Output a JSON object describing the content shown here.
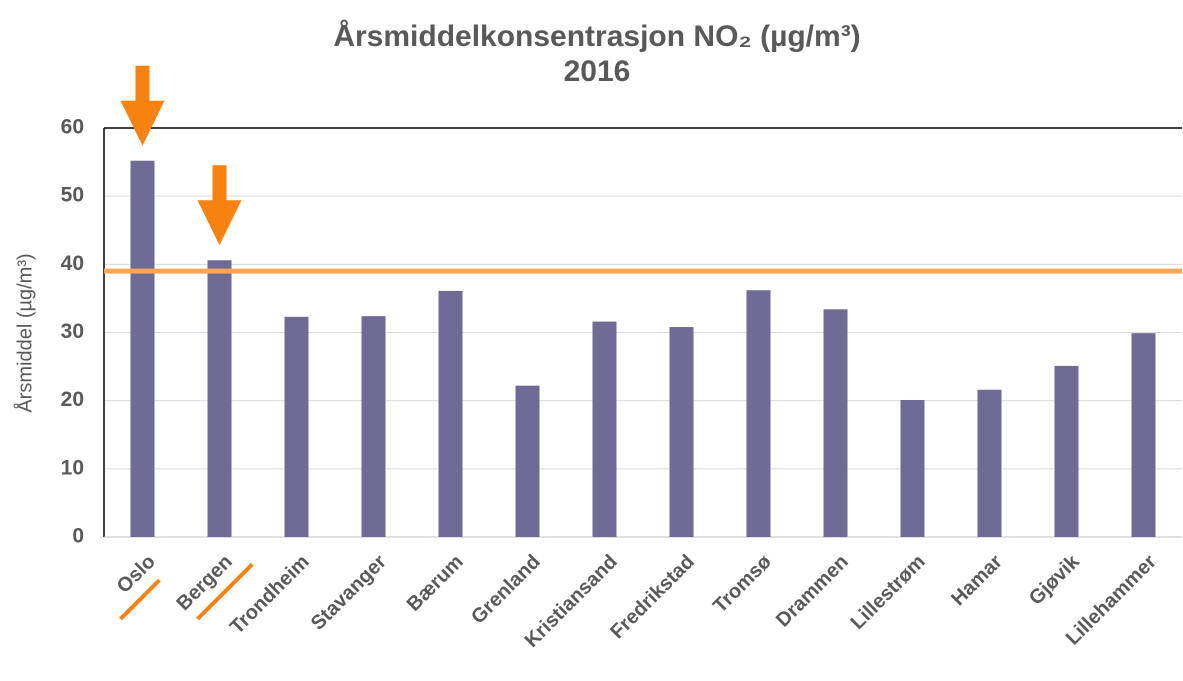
{
  "chart_data": {
    "type": "bar",
    "title": "Årsmiddelkonsentrasjon NO₂ (µg/m³)",
    "subtitle": "2016",
    "y_label": "Årsmiddel (µg/m³)",
    "categories": [
      "Oslo",
      "Bergen",
      "Trondheim",
      "Stavanger",
      "Bærum",
      "Grenland",
      "Kristiansand",
      "Fredrikstad",
      "Tromsø",
      "Drammen",
      "Lillestrøm",
      "Hamar",
      "Gjøvik",
      "Lillehammer"
    ],
    "values": [
      55.2,
      40.6,
      32.3,
      32.4,
      36.1,
      22.2,
      31.6,
      30.8,
      36.2,
      33.4,
      20.1,
      21.6,
      25.1,
      29.9
    ],
    "color": "#706b94",
    "ylim": [
      0,
      60
    ],
    "yticks": [
      0,
      10,
      20,
      30,
      40,
      50,
      60
    ],
    "grid": true,
    "reference_line": {
      "value": 39,
      "color": "#f9a65a"
    },
    "highlighted": [
      0,
      1
    ],
    "highlight_color": "#f7820f"
  }
}
